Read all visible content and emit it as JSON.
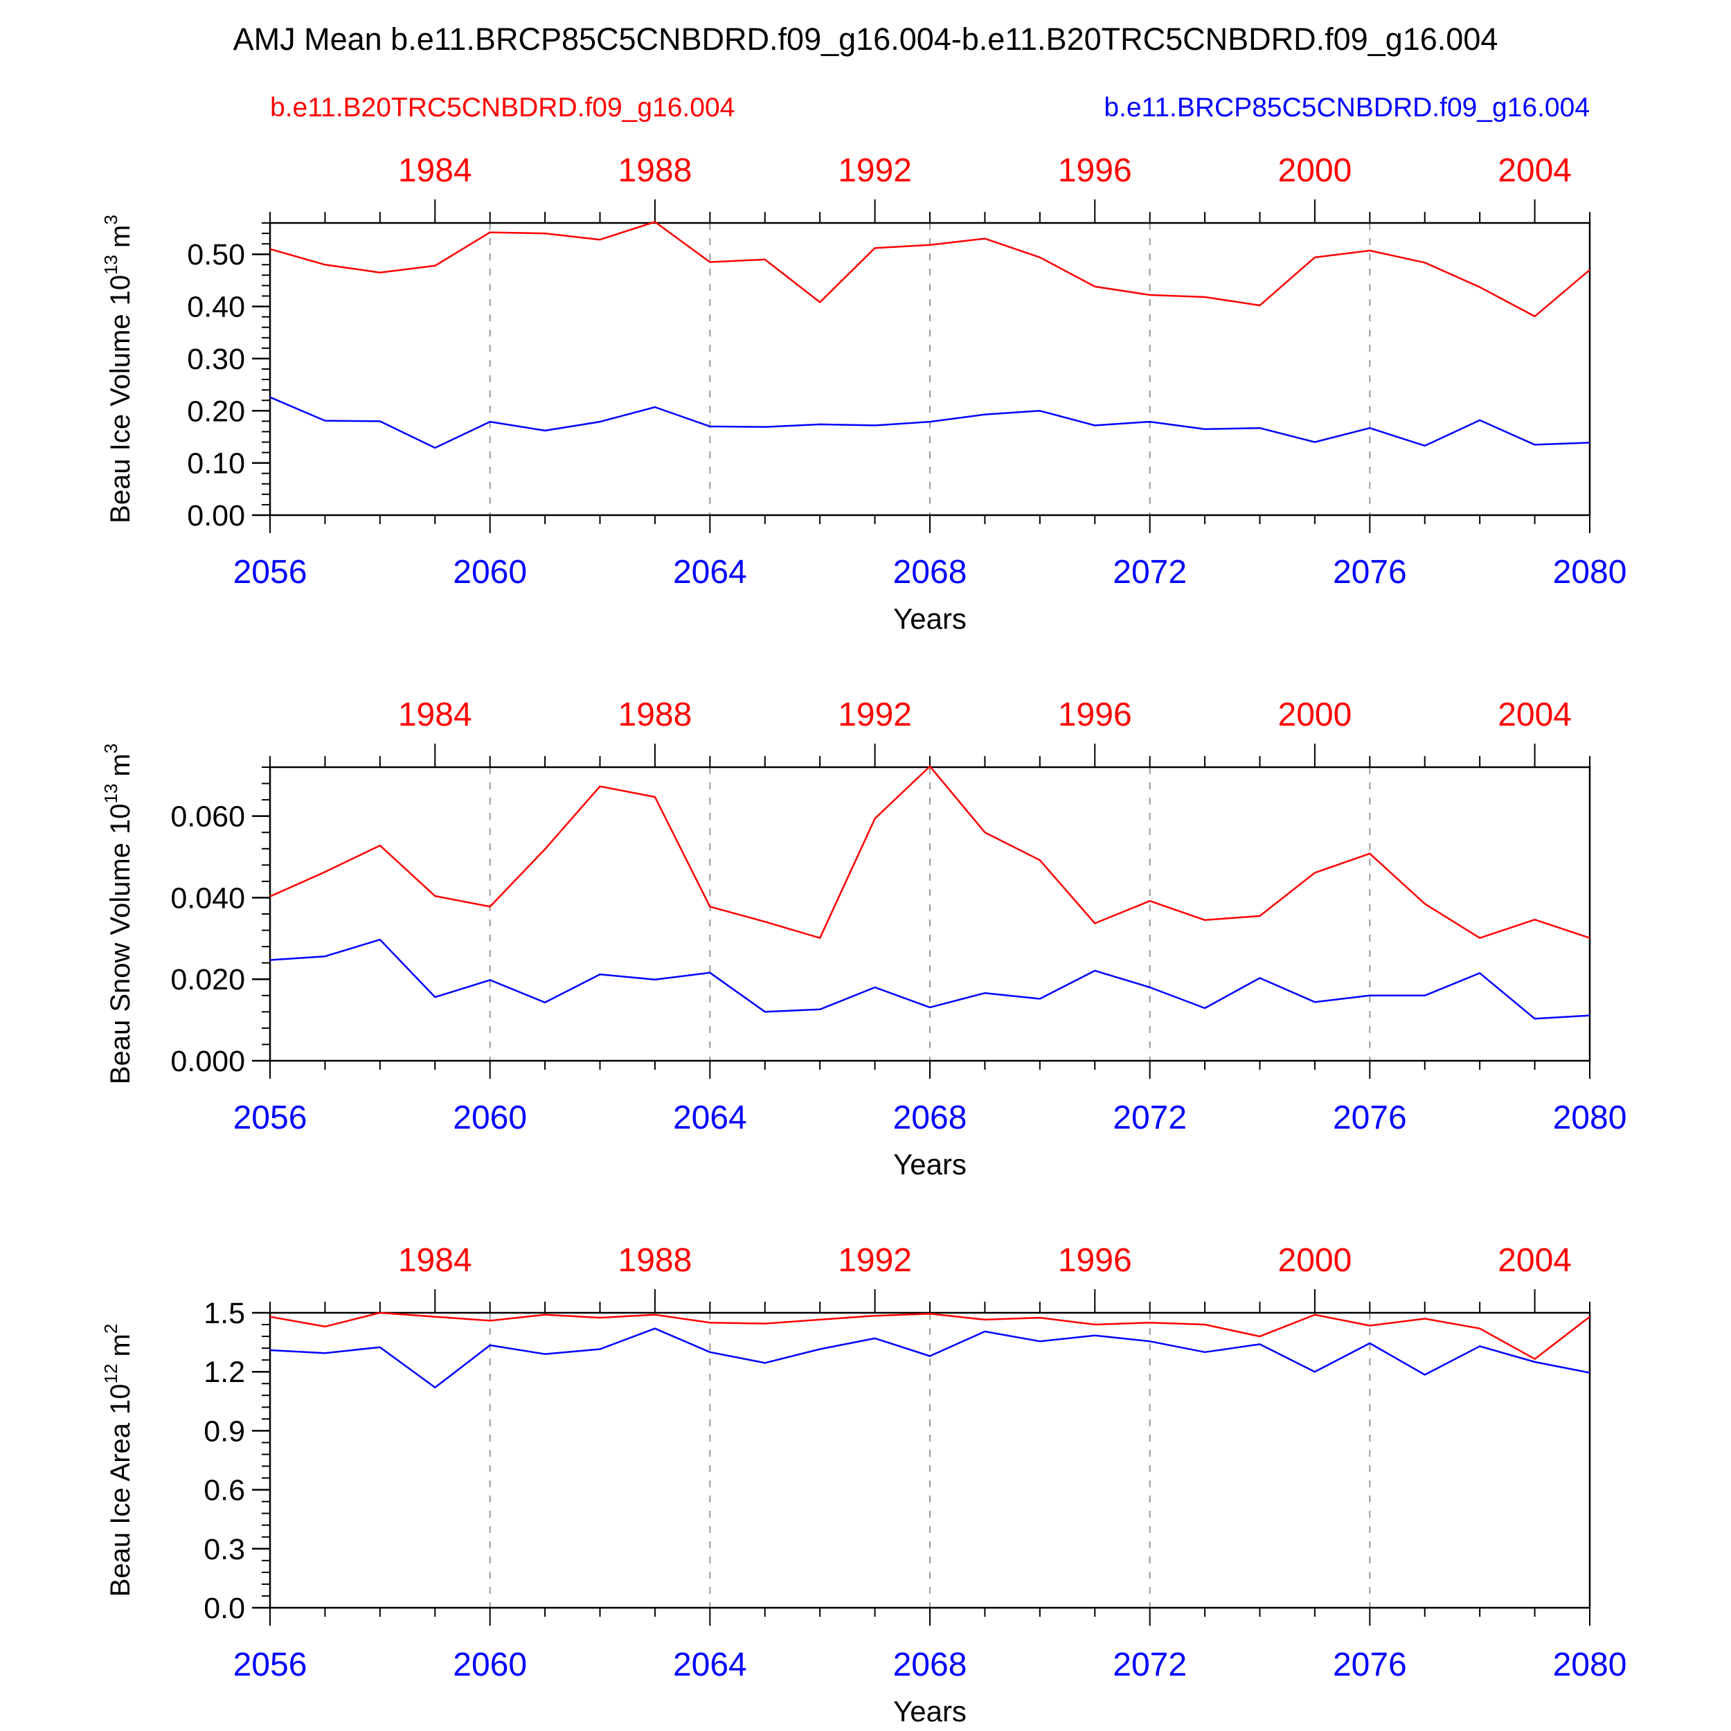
{
  "title": "AMJ Mean b.e11.BRCP85C5CNBDRD.f09_g16.004-b.e11.B20TRC5CNBDRD.f09_g16.004",
  "legend": {
    "red_label": "b.e11.B20TRC5CNBDRD.f09_g16.004",
    "blue_label": "b.e11.BRCP85C5CNBDRD.f09_g16.004"
  },
  "colors": {
    "red": "#ff0000",
    "blue": "#0000ff",
    "text": "#000000",
    "grid": "#999999"
  },
  "chart_data": [
    {
      "type": "line",
      "ylabel": "Beau Ice Volume",
      "yunit_base": "10",
      "yunit_exp": "13",
      "yunit_tail": "m",
      "yunit_tail_exp": "3",
      "xlabel": "Years",
      "ylim": [
        0,
        0.56
      ],
      "yticks": [
        0.0,
        0.1,
        0.2,
        0.3,
        0.4,
        0.5
      ],
      "ytick_labels": [
        "0.00",
        "0.10",
        "0.20",
        "0.30",
        "0.40",
        "0.50"
      ],
      "yminor_step": 0.02,
      "xlim_bottom": [
        2056,
        2080
      ],
      "xticks_bottom": [
        2056,
        2060,
        2064,
        2068,
        2072,
        2076,
        2080
      ],
      "xtick_labels_bottom": [
        "2056",
        "2060",
        "2064",
        "2068",
        "2072",
        "2076",
        "2080"
      ],
      "xlim_top": [
        1981,
        2005
      ],
      "xticks_top": [
        1984,
        1988,
        1992,
        1996,
        2000,
        2004
      ],
      "xtick_labels_top": [
        "1984",
        "1988",
        "1992",
        "1996",
        "2000",
        "2004"
      ],
      "grid": "dashed vertical at major bottom ticks",
      "series": [
        {
          "name": "b.e11.B20TRC5CNBDRD.f09_g16.004",
          "color": "#ff0000",
          "x_axis": "top",
          "x": [
            1981,
            1982,
            1983,
            1984,
            1985,
            1986,
            1987,
            1988,
            1989,
            1990,
            1991,
            1992,
            1993,
            1994,
            1995,
            1996,
            1997,
            1998,
            1999,
            2000,
            2001,
            2002,
            2003,
            2004,
            2005
          ],
          "values": [
            0.51,
            0.48,
            0.465,
            0.478,
            0.542,
            0.54,
            0.528,
            0.562,
            0.485,
            0.49,
            0.408,
            0.512,
            0.518,
            0.53,
            0.494,
            0.438,
            0.422,
            0.418,
            0.402,
            0.494,
            0.507,
            0.484,
            0.437,
            0.381,
            0.47
          ]
        },
        {
          "name": "b.e11.BRCP85C5CNBDRD.f09_g16.004",
          "color": "#0000ff",
          "x_axis": "bottom",
          "x": [
            2056,
            2057,
            2058,
            2059,
            2060,
            2061,
            2062,
            2063,
            2064,
            2065,
            2066,
            2067,
            2068,
            2069,
            2070,
            2071,
            2072,
            2073,
            2074,
            2075,
            2076,
            2077,
            2078,
            2079,
            2080
          ],
          "values": [
            0.226,
            0.181,
            0.18,
            0.129,
            0.179,
            0.162,
            0.179,
            0.207,
            0.17,
            0.169,
            0.174,
            0.172,
            0.179,
            0.193,
            0.2,
            0.172,
            0.179,
            0.165,
            0.167,
            0.14,
            0.167,
            0.133,
            0.182,
            0.135,
            0.139
          ]
        }
      ]
    },
    {
      "type": "line",
      "ylabel": "Beau Snow Volume",
      "yunit_base": "10",
      "yunit_exp": "13",
      "yunit_tail": "m",
      "yunit_tail_exp": "3",
      "xlabel": "Years",
      "ylim": [
        0,
        0.072
      ],
      "yticks": [
        0.0,
        0.02,
        0.04,
        0.06
      ],
      "ytick_labels": [
        "0.000",
        "0.020",
        "0.040",
        "0.060"
      ],
      "yminor_step": 0.004,
      "xlim_bottom": [
        2056,
        2080
      ],
      "xticks_bottom": [
        2056,
        2060,
        2064,
        2068,
        2072,
        2076,
        2080
      ],
      "xtick_labels_bottom": [
        "2056",
        "2060",
        "2064",
        "2068",
        "2072",
        "2076",
        "2080"
      ],
      "xlim_top": [
        1981,
        2005
      ],
      "xticks_top": [
        1984,
        1988,
        1992,
        1996,
        2000,
        2004
      ],
      "xtick_labels_top": [
        "1984",
        "1988",
        "1992",
        "1996",
        "2000",
        "2004"
      ],
      "grid": "dashed vertical at major bottom ticks",
      "series": [
        {
          "name": "b.e11.B20TRC5CNBDRD.f09_g16.004",
          "color": "#ff0000",
          "x_axis": "top",
          "x": [
            1981,
            1982,
            1983,
            1984,
            1985,
            1986,
            1987,
            1988,
            1989,
            1990,
            1991,
            1992,
            1993,
            1994,
            1995,
            1996,
            1997,
            1998,
            1999,
            2000,
            2001,
            2002,
            2003,
            2004,
            2005
          ],
          "values": [
            0.0403,
            0.0463,
            0.0528,
            0.0404,
            0.0378,
            0.0519,
            0.0673,
            0.0647,
            0.0378,
            0.0341,
            0.0301,
            0.0594,
            0.0722,
            0.056,
            0.0492,
            0.0337,
            0.0392,
            0.0345,
            0.0355,
            0.0461,
            0.0508,
            0.0385,
            0.0301,
            0.0346,
            0.0301
          ]
        },
        {
          "name": "b.e11.BRCP85C5CNBDRD.f09_g16.004",
          "color": "#0000ff",
          "x_axis": "bottom",
          "x": [
            2056,
            2057,
            2058,
            2059,
            2060,
            2061,
            2062,
            2063,
            2064,
            2065,
            2066,
            2067,
            2068,
            2069,
            2070,
            2071,
            2072,
            2073,
            2074,
            2075,
            2076,
            2077,
            2078,
            2079,
            2080
          ],
          "values": [
            0.0247,
            0.0256,
            0.0297,
            0.0156,
            0.0198,
            0.0143,
            0.0212,
            0.0199,
            0.0216,
            0.012,
            0.0126,
            0.018,
            0.0131,
            0.0166,
            0.0152,
            0.0221,
            0.018,
            0.0129,
            0.0203,
            0.0144,
            0.016,
            0.016,
            0.0215,
            0.0103,
            0.0111
          ]
        }
      ]
    },
    {
      "type": "line",
      "ylabel": "Beau Ice Area",
      "yunit_base": "10",
      "yunit_exp": "12",
      "yunit_tail": "m",
      "yunit_tail_exp": "2",
      "xlabel": "Years",
      "ylim": [
        0,
        1.5
      ],
      "yticks": [
        0.0,
        0.3,
        0.6,
        0.9,
        1.2,
        1.5
      ],
      "ytick_labels": [
        "0.0",
        "0.3",
        "0.6",
        "0.9",
        "1.2",
        "1.5"
      ],
      "yminor_step": 0.06,
      "xlim_bottom": [
        2056,
        2080
      ],
      "xticks_bottom": [
        2056,
        2060,
        2064,
        2068,
        2072,
        2076,
        2080
      ],
      "xtick_labels_bottom": [
        "2056",
        "2060",
        "2064",
        "2068",
        "2072",
        "2076",
        "2080"
      ],
      "xlim_top": [
        1981,
        2005
      ],
      "xticks_top": [
        1984,
        1988,
        1992,
        1996,
        2000,
        2004
      ],
      "xtick_labels_top": [
        "1984",
        "1988",
        "1992",
        "1996",
        "2000",
        "2004"
      ],
      "grid": "dashed vertical at major bottom ticks",
      "series": [
        {
          "name": "b.e11.B20TRC5CNBDRD.f09_g16.004",
          "color": "#ff0000",
          "x_axis": "top",
          "x": [
            1981,
            1982,
            1983,
            1984,
            1985,
            1986,
            1987,
            1988,
            1989,
            1990,
            1991,
            1992,
            1993,
            1994,
            1995,
            1996,
            1997,
            1998,
            1999,
            2000,
            2001,
            2002,
            2003,
            2004,
            2005
          ],
          "values": [
            1.48,
            1.43,
            1.5,
            1.48,
            1.46,
            1.49,
            1.475,
            1.49,
            1.45,
            1.445,
            1.465,
            1.485,
            1.495,
            1.465,
            1.475,
            1.44,
            1.45,
            1.44,
            1.38,
            1.49,
            1.435,
            1.47,
            1.42,
            1.265,
            1.48
          ]
        },
        {
          "name": "b.e11.BRCP85C5CNBDRD.f09_g16.004",
          "color": "#0000ff",
          "x_axis": "bottom",
          "x": [
            2056,
            2057,
            2058,
            2059,
            2060,
            2061,
            2062,
            2063,
            2064,
            2065,
            2066,
            2067,
            2068,
            2069,
            2070,
            2071,
            2072,
            2073,
            2074,
            2075,
            2076,
            2077,
            2078,
            2079,
            2080
          ],
          "values": [
            1.31,
            1.295,
            1.325,
            1.12,
            1.335,
            1.29,
            1.315,
            1.42,
            1.3,
            1.245,
            1.315,
            1.37,
            1.28,
            1.405,
            1.355,
            1.385,
            1.355,
            1.3,
            1.34,
            1.2,
            1.345,
            1.185,
            1.33,
            1.25,
            1.195
          ]
        }
      ]
    }
  ]
}
